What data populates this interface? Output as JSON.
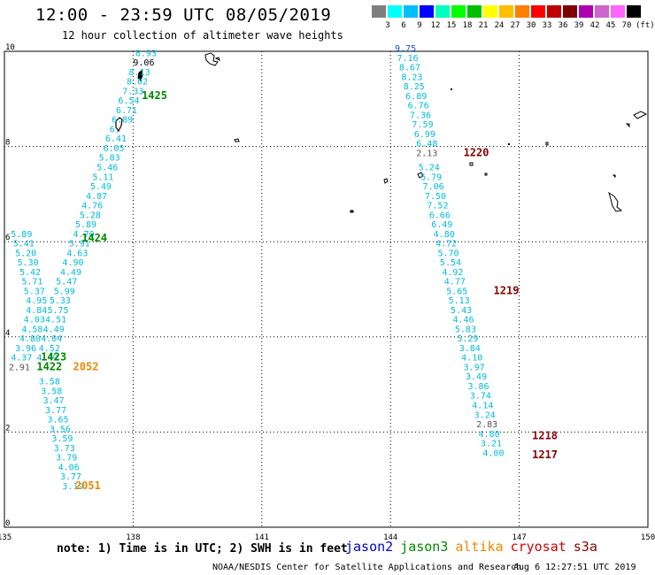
{
  "title": "12:00 - 23:59 UTC 08/05/2019",
  "subtitle": "12 hour collection of altimeter wave heights",
  "colorbar": {
    "colors": [
      "#7f7f7f",
      "#00ffff",
      "#00bfff",
      "#0000ff",
      "#00ffbf",
      "#00ff00",
      "#00bf00",
      "#ffff00",
      "#ffbf00",
      "#ff7f00",
      "#ff0000",
      "#bf0000",
      "#7f0000",
      "#af00af",
      "#cc66cc",
      "#ff66ff",
      "#000000"
    ],
    "labels": [
      "3",
      "6",
      "9",
      "12",
      "15",
      "18",
      "21",
      "24",
      "27",
      "30",
      "33",
      "36",
      "39",
      "42",
      "45",
      "70"
    ],
    "unit": "(ft)"
  },
  "axes": {
    "x_ticks": [
      "135",
      "138",
      "141",
      "144",
      "147",
      "150"
    ],
    "y_ticks": [
      "0",
      "2",
      "4",
      "6",
      "8",
      "10"
    ]
  },
  "series_colors": {
    "cyan": "#00bbdd",
    "blue": "#1a4fd8",
    "black": "#000000",
    "gray": "#555555",
    "green": "#008800",
    "orange": "#ee8800",
    "darkred": "#880000"
  },
  "wave_points": [
    {
      "lon": 138.05,
      "lat": 9.9,
      "v": "8.93",
      "c": "cyan"
    },
    {
      "lon": 138.0,
      "lat": 9.7,
      "v": "9.06",
      "c": "black"
    },
    {
      "lon": 137.9,
      "lat": 9.5,
      "v": "8.13",
      "c": "cyan"
    },
    {
      "lon": 137.85,
      "lat": 9.3,
      "v": "8.02",
      "c": "cyan"
    },
    {
      "lon": 137.75,
      "lat": 9.1,
      "v": "7.33",
      "c": "cyan"
    },
    {
      "lon": 137.65,
      "lat": 8.9,
      "v": "6.54",
      "c": "cyan"
    },
    {
      "lon": 137.6,
      "lat": 8.7,
      "v": "6.71",
      "c": "cyan"
    },
    {
      "lon": 137.5,
      "lat": 8.5,
      "v": "6.89",
      "c": "cyan"
    },
    {
      "lon": 137.45,
      "lat": 8.3,
      "v": "6.",
      "c": "cyan"
    },
    {
      "lon": 137.35,
      "lat": 8.1,
      "v": "6.41",
      "c": "cyan"
    },
    {
      "lon": 137.3,
      "lat": 7.9,
      "v": "6.05",
      "c": "cyan"
    },
    {
      "lon": 137.2,
      "lat": 7.7,
      "v": "5.83",
      "c": "cyan"
    },
    {
      "lon": 137.15,
      "lat": 7.5,
      "v": "5.46",
      "c": "cyan"
    },
    {
      "lon": 137.05,
      "lat": 7.3,
      "v": "5.11",
      "c": "cyan"
    },
    {
      "lon": 137.0,
      "lat": 7.1,
      "v": "5.49",
      "c": "cyan"
    },
    {
      "lon": 136.9,
      "lat": 6.9,
      "v": "4.87",
      "c": "cyan"
    },
    {
      "lon": 136.8,
      "lat": 6.7,
      "v": "4.76",
      "c": "cyan"
    },
    {
      "lon": 136.75,
      "lat": 6.5,
      "v": "5.28",
      "c": "cyan"
    },
    {
      "lon": 136.65,
      "lat": 6.3,
      "v": "5.89",
      "c": "cyan"
    },
    {
      "lon": 136.6,
      "lat": 6.1,
      "v": "4.70",
      "c": "cyan"
    },
    {
      "lon": 136.5,
      "lat": 5.9,
      "v": "5.91",
      "c": "cyan"
    },
    {
      "lon": 136.45,
      "lat": 5.7,
      "v": "4.63",
      "c": "cyan"
    },
    {
      "lon": 136.35,
      "lat": 5.5,
      "v": "4.90",
      "c": "cyan"
    },
    {
      "lon": 136.3,
      "lat": 5.3,
      "v": "4.49",
      "c": "cyan"
    },
    {
      "lon": 136.2,
      "lat": 5.1,
      "v": "5.47",
      "c": "cyan"
    },
    {
      "lon": 136.15,
      "lat": 4.9,
      "v": "5.99",
      "c": "cyan"
    },
    {
      "lon": 136.05,
      "lat": 4.7,
      "v": "5.33",
      "c": "cyan"
    },
    {
      "lon": 136.0,
      "lat": 4.5,
      "v": "5.75",
      "c": "cyan"
    },
    {
      "lon": 135.95,
      "lat": 4.3,
      "v": "4.51",
      "c": "cyan"
    },
    {
      "lon": 135.9,
      "lat": 4.1,
      "v": "4.49",
      "c": "cyan"
    },
    {
      "lon": 135.85,
      "lat": 3.9,
      "v": "4.04",
      "c": "cyan"
    },
    {
      "lon": 135.8,
      "lat": 3.7,
      "v": "4.52",
      "c": "cyan"
    },
    {
      "lon": 135.75,
      "lat": 3.5,
      "v": "4.49",
      "c": "cyan"
    },
    {
      "lon": 135.15,
      "lat": 6.1,
      "v": "5.89",
      "c": "cyan"
    },
    {
      "lon": 135.2,
      "lat": 5.9,
      "v": "5.41",
      "c": "cyan"
    },
    {
      "lon": 135.25,
      "lat": 5.7,
      "v": "5.20",
      "c": "cyan"
    },
    {
      "lon": 135.3,
      "lat": 5.5,
      "v": "5.30",
      "c": "cyan"
    },
    {
      "lon": 135.35,
      "lat": 5.3,
      "v": "5.42",
      "c": "cyan"
    },
    {
      "lon": 135.4,
      "lat": 5.1,
      "v": "5.71",
      "c": "cyan"
    },
    {
      "lon": 135.45,
      "lat": 4.9,
      "v": "5.37",
      "c": "cyan"
    },
    {
      "lon": 135.5,
      "lat": 4.7,
      "v": "4.95",
      "c": "cyan"
    },
    {
      "lon": 135.5,
      "lat": 4.5,
      "v": "4.84",
      "c": "cyan"
    },
    {
      "lon": 135.45,
      "lat": 4.3,
      "v": "4.03",
      "c": "cyan"
    },
    {
      "lon": 135.4,
      "lat": 4.1,
      "v": "4.58",
      "c": "cyan"
    },
    {
      "lon": 135.35,
      "lat": 3.9,
      "v": "4.80",
      "c": "cyan"
    },
    {
      "lon": 135.25,
      "lat": 3.7,
      "v": "3.96",
      "c": "cyan"
    },
    {
      "lon": 135.15,
      "lat": 3.5,
      "v": "4.37",
      "c": "cyan"
    },
    {
      "lon": 135.1,
      "lat": 3.3,
      "v": "2.91",
      "c": "gray"
    },
    {
      "lon": 135.8,
      "lat": 3.0,
      "v": "3.58",
      "c": "cyan"
    },
    {
      "lon": 135.85,
      "lat": 2.8,
      "v": "3.58",
      "c": "cyan"
    },
    {
      "lon": 135.9,
      "lat": 2.6,
      "v": "3.47",
      "c": "cyan"
    },
    {
      "lon": 135.95,
      "lat": 2.4,
      "v": "3.77",
      "c": "cyan"
    },
    {
      "lon": 136.0,
      "lat": 2.2,
      "v": "3.65",
      "c": "cyan"
    },
    {
      "lon": 136.05,
      "lat": 2.0,
      "v": "3.56",
      "c": "cyan"
    },
    {
      "lon": 136.1,
      "lat": 1.8,
      "v": "3.59",
      "c": "cyan"
    },
    {
      "lon": 136.15,
      "lat": 1.6,
      "v": "3.73",
      "c": "cyan"
    },
    {
      "lon": 136.2,
      "lat": 1.4,
      "v": "3.79",
      "c": "cyan"
    },
    {
      "lon": 136.25,
      "lat": 1.2,
      "v": "4.06",
      "c": "cyan"
    },
    {
      "lon": 136.3,
      "lat": 1.0,
      "v": "3.77",
      "c": "cyan"
    },
    {
      "lon": 136.35,
      "lat": 0.8,
      "v": "3.19",
      "c": "cyan"
    },
    {
      "lon": 144.1,
      "lat": 10.0,
      "v": "9.75",
      "c": "blue"
    },
    {
      "lon": 144.15,
      "lat": 9.8,
      "v": "7.16",
      "c": "cyan"
    },
    {
      "lon": 144.2,
      "lat": 9.6,
      "v": "8.67",
      "c": "cyan"
    },
    {
      "lon": 144.25,
      "lat": 9.4,
      "v": "8.23",
      "c": "cyan"
    },
    {
      "lon": 144.3,
      "lat": 9.2,
      "v": "8.25",
      "c": "cyan"
    },
    {
      "lon": 144.35,
      "lat": 9.0,
      "v": "6.89",
      "c": "cyan"
    },
    {
      "lon": 144.4,
      "lat": 8.8,
      "v": "6.76",
      "c": "cyan"
    },
    {
      "lon": 144.45,
      "lat": 8.6,
      "v": "7.36",
      "c": "cyan"
    },
    {
      "lon": 144.5,
      "lat": 8.4,
      "v": "7.59",
      "c": "cyan"
    },
    {
      "lon": 144.55,
      "lat": 8.2,
      "v": "6.99",
      "c": "cyan"
    },
    {
      "lon": 144.6,
      "lat": 8.0,
      "v": "6.48",
      "c": "cyan"
    },
    {
      "lon": 144.6,
      "lat": 7.8,
      "v": "2.13",
      "c": "gray"
    },
    {
      "lon": 144.65,
      "lat": 7.5,
      "v": "5.24",
      "c": "cyan"
    },
    {
      "lon": 144.7,
      "lat": 7.3,
      "v": "5.79",
      "c": "cyan"
    },
    {
      "lon": 144.75,
      "lat": 7.1,
      "v": "7.06",
      "c": "cyan"
    },
    {
      "lon": 144.8,
      "lat": 6.9,
      "v": "7.50",
      "c": "cyan"
    },
    {
      "lon": 144.85,
      "lat": 6.7,
      "v": "7.52",
      "c": "cyan"
    },
    {
      "lon": 144.9,
      "lat": 6.5,
      "v": "6.66",
      "c": "cyan"
    },
    {
      "lon": 144.95,
      "lat": 6.3,
      "v": "6.49",
      "c": "cyan"
    },
    {
      "lon": 145.0,
      "lat": 6.1,
      "v": "4.80",
      "c": "cyan"
    },
    {
      "lon": 145.05,
      "lat": 5.9,
      "v": "4.72",
      "c": "cyan"
    },
    {
      "lon": 145.1,
      "lat": 5.7,
      "v": "5.70",
      "c": "cyan"
    },
    {
      "lon": 145.15,
      "lat": 5.5,
      "v": "5.54",
      "c": "cyan"
    },
    {
      "lon": 145.2,
      "lat": 5.3,
      "v": "4.92",
      "c": "cyan"
    },
    {
      "lon": 145.25,
      "lat": 5.1,
      "v": "4.77",
      "c": "cyan"
    },
    {
      "lon": 145.3,
      "lat": 4.9,
      "v": "5.65",
      "c": "cyan"
    },
    {
      "lon": 145.35,
      "lat": 4.7,
      "v": "5.13",
      "c": "cyan"
    },
    {
      "lon": 145.4,
      "lat": 4.5,
      "v": "5.43",
      "c": "cyan"
    },
    {
      "lon": 145.45,
      "lat": 4.3,
      "v": "4.46",
      "c": "cyan"
    },
    {
      "lon": 145.5,
      "lat": 4.1,
      "v": "5.83",
      "c": "cyan"
    },
    {
      "lon": 145.55,
      "lat": 3.9,
      "v": "5.29",
      "c": "cyan"
    },
    {
      "lon": 145.6,
      "lat": 3.7,
      "v": "3.84",
      "c": "cyan"
    },
    {
      "lon": 145.65,
      "lat": 3.5,
      "v": "4.10",
      "c": "cyan"
    },
    {
      "lon": 145.7,
      "lat": 3.3,
      "v": "3.97",
      "c": "cyan"
    },
    {
      "lon": 145.75,
      "lat": 3.1,
      "v": "3.49",
      "c": "cyan"
    },
    {
      "lon": 145.8,
      "lat": 2.9,
      "v": "3.86",
      "c": "cyan"
    },
    {
      "lon": 145.85,
      "lat": 2.7,
      "v": "3.74",
      "c": "cyan"
    },
    {
      "lon": 145.9,
      "lat": 2.5,
      "v": "4.14",
      "c": "cyan"
    },
    {
      "lon": 145.95,
      "lat": 2.3,
      "v": "3.24",
      "c": "cyan"
    },
    {
      "lon": 146.0,
      "lat": 2.1,
      "v": "2.83",
      "c": "gray"
    },
    {
      "lon": 146.05,
      "lat": 1.9,
      "v": "4.80",
      "c": "cyan"
    },
    {
      "lon": 146.1,
      "lat": 1.7,
      "v": "3.21",
      "c": "cyan"
    },
    {
      "lon": 146.15,
      "lat": 1.5,
      "v": "4.00",
      "c": "cyan"
    }
  ],
  "time_labels": [
    {
      "lon": 138.2,
      "lat": 9.0,
      "t": "1425",
      "c": "green"
    },
    {
      "lon": 136.8,
      "lat": 6.0,
      "t": "1424",
      "c": "green"
    },
    {
      "lon": 135.85,
      "lat": 3.5,
      "t": "1423",
      "c": "green"
    },
    {
      "lon": 135.75,
      "lat": 3.3,
      "t": "1422",
      "c": "green"
    },
    {
      "lon": 136.6,
      "lat": 3.3,
      "t": "2052",
      "c": "orange"
    },
    {
      "lon": 136.65,
      "lat": 0.8,
      "t": "2051",
      "c": "orange"
    },
    {
      "lon": 145.7,
      "lat": 7.8,
      "t": "1220",
      "c": "darkred"
    },
    {
      "lon": 146.4,
      "lat": 4.9,
      "t": "1219",
      "c": "darkred"
    },
    {
      "lon": 147.3,
      "lat": 1.85,
      "t": "1218",
      "c": "darkred"
    },
    {
      "lon": 147.3,
      "lat": 1.45,
      "t": "1217",
      "c": "darkred"
    }
  ],
  "note": "note: 1) Time is in UTC; 2) SWH is in feet",
  "legend": [
    {
      "name": "jason2",
      "color": "#0000cc"
    },
    {
      "name": "jason3",
      "color": "#008800"
    },
    {
      "name": "altika",
      "color": "#ee8800"
    },
    {
      "name": "cryosat",
      "color": "#cc0000"
    },
    {
      "name": "s3a",
      "color": "#880000"
    }
  ],
  "credit": "NOAA/NESDIS Center for Satellite Applications and Research",
  "timestamp": "Aug  6 12:27:51 UTC 2019"
}
